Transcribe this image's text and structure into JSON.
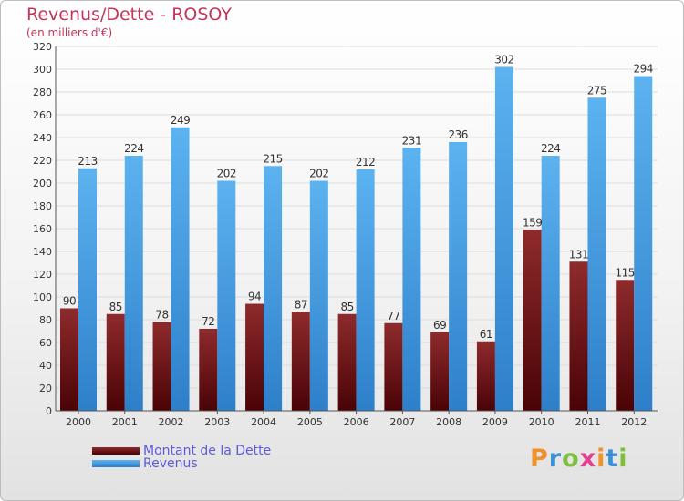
{
  "header": {
    "title": "Revenus/Dette - ROSOY",
    "subtitle": "(en milliers d'€)"
  },
  "legend": {
    "debt_label": "Montant de la Dette",
    "revenue_label": "Revenus"
  },
  "logo": {
    "text": "Proxiti",
    "letter_colors": [
      "#f0912c",
      "#3f8fd4",
      "#7bbf3a",
      "#e23f8e",
      "#f0912c",
      "#3f8fd4",
      "#7bbf3a"
    ]
  },
  "colors": {
    "debt": "#7a1a1e",
    "revenue": "#4aa3e6",
    "grid": "#dcdcdc",
    "axis": "#555555"
  },
  "chart_data": {
    "type": "bar",
    "categories": [
      "2000",
      "2001",
      "2002",
      "2003",
      "2004",
      "2005",
      "2006",
      "2007",
      "2008",
      "2009",
      "2010",
      "2011",
      "2012"
    ],
    "series": [
      {
        "name": "Montant de la Dette",
        "values": [
          90,
          85,
          78,
          72,
          94,
          87,
          85,
          77,
          69,
          61,
          159,
          131,
          115
        ]
      },
      {
        "name": "Revenus",
        "values": [
          213,
          224,
          249,
          202,
          215,
          202,
          212,
          231,
          236,
          302,
          224,
          275,
          294
        ]
      }
    ],
    "title": "Revenus/Dette - ROSOY",
    "subtitle": "(en milliers d'€)",
    "ylim": [
      0,
      320
    ],
    "ytick_step": 20,
    "grid": true,
    "legend_position": "bottom-left"
  }
}
